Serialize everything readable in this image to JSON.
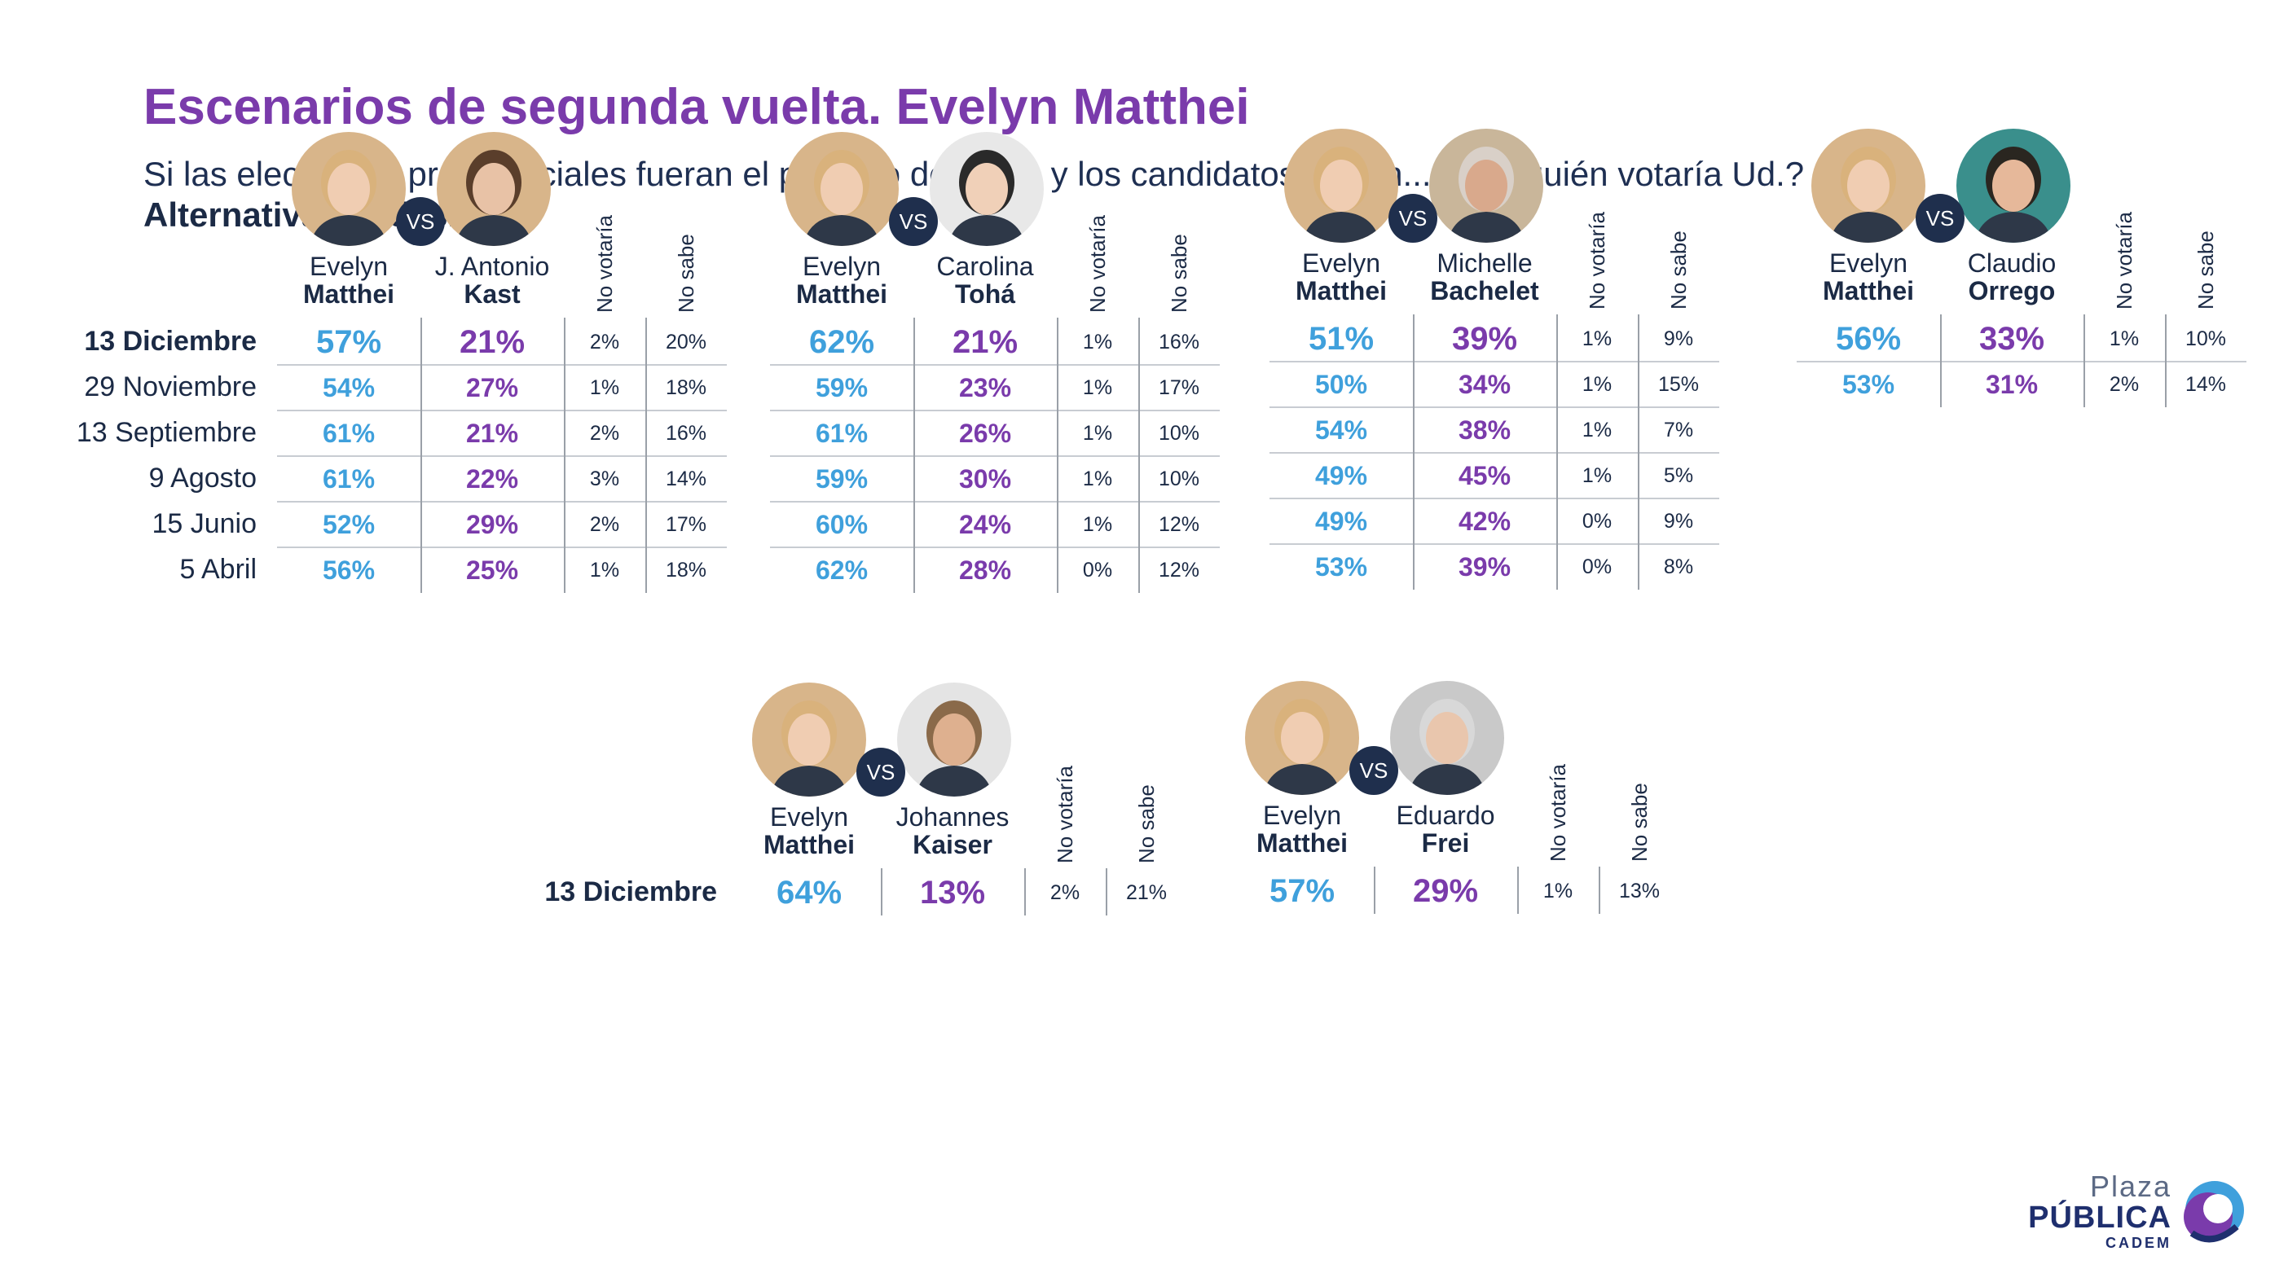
{
  "header": {
    "title": "Escenarios de segunda vuelta. Evelyn Matthei",
    "subtitle": "Si las elecciones presidenciales fueran el próximo domingo y los candidatos fueran... ¿Por quién votaría Ud.?",
    "subtitle2": "Alternativas dadas. %"
  },
  "labels": {
    "vs": "VS",
    "no_votaria": "No votaría",
    "no_sabe": "No sabe"
  },
  "colors": {
    "matthei": "#3fa0dc",
    "opponent": "#7a3bab",
    "title": "#7a3bab",
    "text": "#1b2a45",
    "vs_badge": "#1f2f4d"
  },
  "logo": {
    "line1": "Plaza",
    "line2": "PÚBLICA",
    "line3": "CADEM"
  },
  "chart_data": [
    {
      "type": "table",
      "candidate_a": {
        "first": "Evelyn",
        "last": "Matthei"
      },
      "candidate_b": {
        "first": "J. Antonio",
        "last": "Kast"
      },
      "columns": [
        "Evelyn Matthei",
        "J. Antonio Kast",
        "No votaría",
        "No sabe"
      ],
      "rows": [
        {
          "date": "13 Diciembre",
          "values": [
            "57%",
            "21%",
            "2%",
            "20%"
          ]
        },
        {
          "date": "29 Noviembre",
          "values": [
            "54%",
            "27%",
            "1%",
            "18%"
          ]
        },
        {
          "date": "13 Septiembre",
          "values": [
            "61%",
            "21%",
            "2%",
            "16%"
          ]
        },
        {
          "date": "9 Agosto",
          "values": [
            "61%",
            "22%",
            "3%",
            "14%"
          ]
        },
        {
          "date": "15 Junio",
          "values": [
            "52%",
            "29%",
            "2%",
            "17%"
          ]
        },
        {
          "date": "5 Abril",
          "values": [
            "56%",
            "25%",
            "1%",
            "18%"
          ]
        }
      ]
    },
    {
      "type": "table",
      "candidate_a": {
        "first": "Evelyn",
        "last": "Matthei"
      },
      "candidate_b": {
        "first": "Carolina",
        "last": "Tohá"
      },
      "columns": [
        "Evelyn Matthei",
        "Carolina Tohá",
        "No votaría",
        "No sabe"
      ],
      "rows": [
        {
          "date": "13 Diciembre",
          "values": [
            "62%",
            "21%",
            "1%",
            "16%"
          ]
        },
        {
          "date": "29 Noviembre",
          "values": [
            "59%",
            "23%",
            "1%",
            "17%"
          ]
        },
        {
          "date": "13 Septiembre",
          "values": [
            "61%",
            "26%",
            "1%",
            "10%"
          ]
        },
        {
          "date": "9 Agosto",
          "values": [
            "59%",
            "30%",
            "1%",
            "10%"
          ]
        },
        {
          "date": "15 Junio",
          "values": [
            "60%",
            "24%",
            "1%",
            "12%"
          ]
        },
        {
          "date": "5 Abril",
          "values": [
            "62%",
            "28%",
            "0%",
            "12%"
          ]
        }
      ]
    },
    {
      "type": "table",
      "candidate_a": {
        "first": "Evelyn",
        "last": "Matthei"
      },
      "candidate_b": {
        "first": "Michelle",
        "last": "Bachelet"
      },
      "columns": [
        "Evelyn Matthei",
        "Michelle Bachelet",
        "No votaría",
        "No sabe"
      ],
      "rows": [
        {
          "date": "13 Diciembre",
          "values": [
            "51%",
            "39%",
            "1%",
            "9%"
          ]
        },
        {
          "date": "29 Noviembre",
          "values": [
            "50%",
            "34%",
            "1%",
            "15%"
          ]
        },
        {
          "date": "13 Septiembre",
          "values": [
            "54%",
            "38%",
            "1%",
            "7%"
          ]
        },
        {
          "date": "9 Agosto",
          "values": [
            "49%",
            "45%",
            "1%",
            "5%"
          ]
        },
        {
          "date": "15 Junio",
          "values": [
            "49%",
            "42%",
            "0%",
            "9%"
          ]
        },
        {
          "date": "5 Abril",
          "values": [
            "53%",
            "39%",
            "0%",
            "8%"
          ]
        }
      ]
    },
    {
      "type": "table",
      "candidate_a": {
        "first": "Evelyn",
        "last": "Matthei"
      },
      "candidate_b": {
        "first": "Claudio",
        "last": "Orrego"
      },
      "columns": [
        "Evelyn Matthei",
        "Claudio Orrego",
        "No votaría",
        "No sabe"
      ],
      "rows": [
        {
          "date": "13 Diciembre",
          "values": [
            "56%",
            "33%",
            "1%",
            "10%"
          ]
        },
        {
          "date": "29 Noviembre",
          "values": [
            "53%",
            "31%",
            "2%",
            "14%"
          ]
        }
      ]
    },
    {
      "type": "table",
      "candidate_a": {
        "first": "Evelyn",
        "last": "Matthei"
      },
      "candidate_b": {
        "first": "Johannes",
        "last": "Kaiser"
      },
      "columns": [
        "Evelyn Matthei",
        "Johannes Kaiser",
        "No votaría",
        "No sabe"
      ],
      "rows": [
        {
          "date": "13 Diciembre",
          "values": [
            "64%",
            "13%",
            "2%",
            "21%"
          ]
        }
      ]
    },
    {
      "type": "table",
      "candidate_a": {
        "first": "Evelyn",
        "last": "Matthei"
      },
      "candidate_b": {
        "first": "Eduardo",
        "last": "Frei"
      },
      "columns": [
        "Evelyn Matthei",
        "Eduardo Frei",
        "No votaría",
        "No sabe"
      ],
      "rows": [
        {
          "date": "13 Diciembre",
          "values": [
            "57%",
            "29%",
            "1%",
            "13%"
          ]
        }
      ]
    }
  ]
}
